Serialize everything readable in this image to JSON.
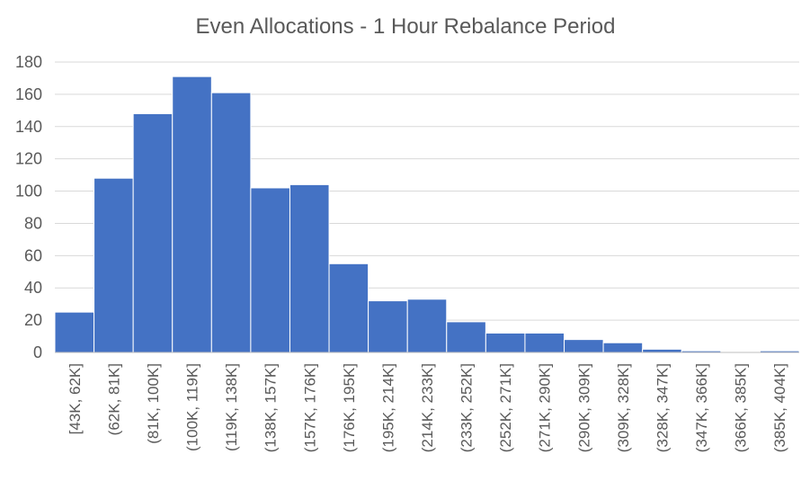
{
  "chart_data": {
    "type": "bar",
    "title": "Even Allocations - 1 Hour Rebalance Period",
    "xlabel": "",
    "ylabel": "",
    "categories": [
      "[43K, 62K]",
      "(62K, 81K]",
      "(81K, 100K]",
      "(100K, 119K]",
      "(119K, 138K]",
      "(138K, 157K]",
      "(157K, 176K]",
      "(176K, 195K]",
      "(195K, 214K]",
      "(214K, 233K]",
      "(233K, 252K]",
      "(252K, 271K]",
      "(271K, 290K]",
      "(290K, 309K]",
      "(309K, 328K]",
      "(328K, 347K]",
      "(347K, 366K]",
      "(366K, 385K]",
      "(385K, 404K]"
    ],
    "values": [
      25,
      108,
      148,
      171,
      161,
      102,
      104,
      55,
      32,
      33,
      19,
      12,
      12,
      8,
      6,
      2,
      1,
      0,
      1
    ],
    "ylim": [
      0,
      180
    ],
    "yticks": [
      0,
      20,
      40,
      60,
      80,
      100,
      120,
      140,
      160,
      180
    ],
    "grid": true,
    "bar_color": "#4472c4",
    "bar_gap": "none"
  }
}
